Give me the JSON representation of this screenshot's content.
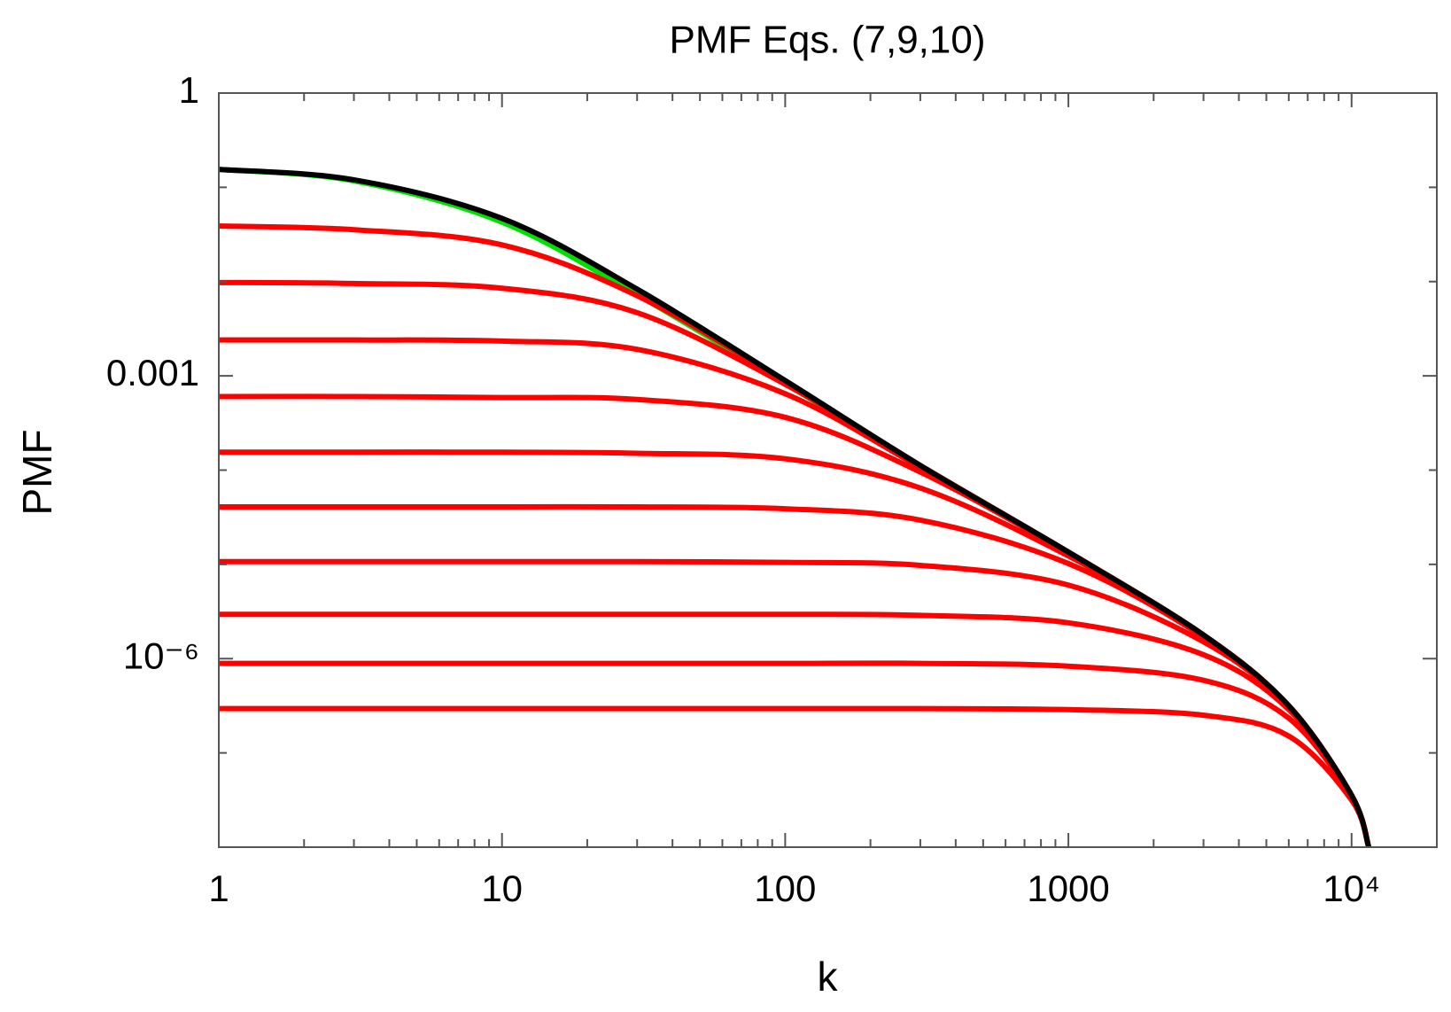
{
  "chart_data": {
    "type": "line",
    "title": "PMF Eqs. (7,9,10)",
    "x_label": "k",
    "y_label": "PMF",
    "xscale": "log",
    "yscale": "log",
    "xlim": [
      1,
      20000
    ],
    "ylim": [
      1e-08,
      1
    ],
    "xticks": [
      1,
      10,
      100,
      1000,
      {
        "value": 10000,
        "label": "10⁴"
      }
    ],
    "yticks": [
      1,
      0.001,
      {
        "value": 1e-06,
        "label": "10⁻⁶"
      }
    ],
    "xminorticks": [
      2,
      3,
      4,
      5,
      6,
      7,
      8,
      9,
      20,
      30,
      40,
      50,
      60,
      70,
      80,
      90,
      200,
      300,
      400,
      500,
      600,
      700,
      800,
      900,
      2000,
      3000,
      4000,
      5000,
      6000,
      7000,
      8000,
      9000,
      20000
    ],
    "yminorticks": [
      0.1,
      0.01,
      0.0001,
      1e-05,
      1e-07
    ],
    "x": [
      1,
      3,
      10,
      30,
      100,
      300,
      1000,
      3000,
      6000,
      10000,
      11500
    ],
    "series": [
      {
        "color": "#00e000",
        "values": [
          0.155,
          0.117,
          0.0427,
          0.00724,
          0.000832,
          0.00011,
          1.35e-05,
          1.78e-06,
          3.16e-07,
          3.55e-08,
          1e-08
        ]
      },
      {
        "color": "#ff0000",
        "values": [
          0.0389,
          0.0355,
          0.0245,
          0.00708,
          0.000871,
          0.000112,
          1.35e-05,
          1.78e-06,
          3.16e-07,
          3.55e-08,
          1e-08
        ]
      },
      {
        "color": "#ff0000",
        "values": [
          0.00977,
          0.00955,
          0.00851,
          0.00468,
          0.000813,
          0.000112,
          1.35e-05,
          1.78e-06,
          3.16e-07,
          3.55e-08,
          1e-08
        ]
      },
      {
        "color": "#ff0000",
        "values": [
          0.0024,
          0.0024,
          0.00234,
          0.00191,
          0.000646,
          0.000107,
          1.35e-05,
          1.78e-06,
          3.16e-07,
          3.55e-08,
          1e-08
        ]
      },
      {
        "color": "#ff0000",
        "values": [
          0.000603,
          0.000603,
          0.000589,
          0.000562,
          0.000363,
          9.55e-05,
          1.32e-05,
          1.78e-06,
          3.16e-07,
          3.55e-08,
          1e-08
        ]
      },
      {
        "color": "#ff0000",
        "values": [
          0.000155,
          0.000155,
          0.000155,
          0.000151,
          0.000132,
          6.46e-05,
          1.23e-05,
          1.78e-06,
          3.16e-07,
          3.55e-08,
          1e-08
        ]
      },
      {
        "color": "#ff0000",
        "values": [
          4.07e-05,
          4.07e-05,
          4.07e-05,
          4.07e-05,
          3.89e-05,
          2.95e-05,
          1.02e-05,
          1.7e-06,
          3.16e-07,
          3.55e-08,
          1e-08
        ]
      },
      {
        "color": "#ff0000",
        "values": [
          1.07e-05,
          1.07e-05,
          1.07e-05,
          1.07e-05,
          1.05e-05,
          9.77e-06,
          6.03e-06,
          1.51e-06,
          3.09e-07,
          3.55e-08,
          1e-08
        ]
      },
      {
        "color": "#ff0000",
        "values": [
          2.95e-06,
          2.95e-06,
          2.95e-06,
          2.95e-06,
          2.95e-06,
          2.88e-06,
          2.4e-06,
          1.1e-06,
          2.88e-07,
          3.47e-08,
          1e-08
        ]
      },
      {
        "color": "#ff0000",
        "values": [
          8.91e-07,
          8.91e-07,
          8.91e-07,
          8.91e-07,
          8.91e-07,
          8.91e-07,
          8.32e-07,
          5.89e-07,
          2.34e-07,
          3.39e-08,
          1e-08
        ]
      },
      {
        "color": "#ff0000",
        "values": [
          2.95e-07,
          2.95e-07,
          2.95e-07,
          2.95e-07,
          2.95e-07,
          2.95e-07,
          2.88e-07,
          2.51e-07,
          1.51e-07,
          3.16e-08,
          1e-08
        ]
      },
      {
        "color": "#000000",
        "values": [
          0.155,
          0.12,
          0.0468,
          0.00832,
          0.000891,
          0.000112,
          1.35e-05,
          1.78e-06,
          3.16e-07,
          3.55e-08,
          1e-08
        ]
      }
    ]
  }
}
